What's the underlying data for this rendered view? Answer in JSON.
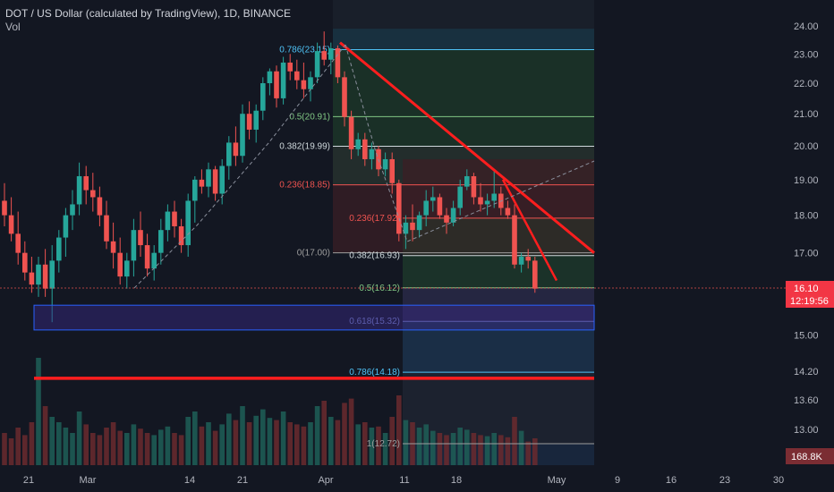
{
  "header": {
    "title": "DOT / US Dollar (calculated by TradingView), 1D, BINANCE",
    "volume_label": "Vol"
  },
  "colors": {
    "background": "#131722",
    "up": "#26a69a",
    "down": "#ef5350",
    "trendline": "#ff1e1e",
    "zone_fill": "#3a2a8a",
    "zone_border": "#2962ff"
  },
  "chart_data": {
    "type": "candlestick",
    "title": "DOT / US Dollar (calculated by TradingView), 1D, BINANCE",
    "y_axis": {
      "ticks": [
        "24.00",
        "23.00",
        "22.00",
        "21.00",
        "20.00",
        "19.00",
        "18.00",
        "17.00",
        "15.00",
        "14.20",
        "13.60",
        "13.00"
      ],
      "tick_values": [
        24,
        23,
        22,
        21,
        20,
        19,
        18,
        17,
        15,
        14.2,
        13.6,
        13
      ],
      "scale": "log"
    },
    "x_axis": {
      "ticks": [
        "21",
        "Mar",
        "14",
        "21",
        "Apr",
        "11",
        "18",
        "May",
        "9",
        "16",
        "23",
        "30"
      ]
    },
    "price_tag": {
      "price": "16.10",
      "countdown": "12:19:56"
    },
    "volume_tag": "168.8K",
    "candles": [
      [
        18.4,
        18.9,
        17.7,
        18.0
      ],
      [
        18.0,
        18.5,
        17.3,
        17.5
      ],
      [
        17.5,
        18.1,
        16.7,
        17.0
      ],
      [
        17.0,
        17.3,
        16.3,
        16.5
      ],
      [
        16.5,
        16.9,
        16.0,
        16.2
      ],
      [
        16.2,
        16.9,
        15.9,
        16.7
      ],
      [
        16.7,
        17.1,
        15.9,
        16.1
      ],
      [
        16.1,
        17.2,
        15.3,
        16.8
      ],
      [
        16.8,
        17.6,
        16.5,
        17.4
      ],
      [
        17.4,
        18.2,
        16.9,
        18.0
      ],
      [
        18.0,
        18.7,
        17.6,
        18.3
      ],
      [
        18.3,
        19.5,
        18.0,
        19.1
      ],
      [
        19.1,
        19.4,
        18.3,
        18.7
      ],
      [
        18.7,
        19.2,
        18.1,
        18.5
      ],
      [
        18.5,
        18.8,
        17.7,
        18.0
      ],
      [
        18.0,
        18.4,
        17.1,
        17.3
      ],
      [
        17.3,
        17.8,
        16.6,
        17.0
      ],
      [
        17.0,
        17.4,
        16.2,
        16.4
      ],
      [
        16.4,
        17.0,
        16.1,
        16.8
      ],
      [
        16.8,
        17.9,
        16.4,
        17.6
      ],
      [
        17.6,
        18.1,
        16.9,
        17.2
      ],
      [
        17.2,
        17.5,
        16.4,
        16.6
      ],
      [
        16.6,
        17.2,
        16.3,
        17.0
      ],
      [
        17.0,
        17.9,
        16.7,
        17.6
      ],
      [
        17.6,
        18.3,
        17.3,
        18.1
      ],
      [
        18.1,
        18.4,
        17.4,
        17.7
      ],
      [
        17.7,
        17.9,
        17.0,
        17.2
      ],
      [
        17.2,
        18.6,
        16.9,
        18.4
      ],
      [
        18.4,
        19.1,
        17.8,
        19.0
      ],
      [
        19.0,
        19.3,
        18.6,
        18.8
      ],
      [
        18.8,
        19.5,
        18.5,
        19.3
      ],
      [
        19.3,
        19.4,
        18.4,
        18.6
      ],
      [
        18.6,
        19.6,
        18.3,
        19.4
      ],
      [
        19.4,
        20.3,
        19.0,
        20.1
      ],
      [
        20.1,
        20.6,
        19.4,
        19.7
      ],
      [
        19.7,
        21.3,
        19.5,
        21.0
      ],
      [
        21.0,
        21.4,
        20.2,
        20.5
      ],
      [
        20.5,
        21.3,
        20.1,
        21.1
      ],
      [
        21.1,
        22.2,
        20.8,
        22.0
      ],
      [
        22.0,
        22.5,
        21.6,
        22.4
      ],
      [
        22.4,
        22.6,
        21.2,
        21.5
      ],
      [
        21.5,
        22.9,
        21.3,
        22.7
      ],
      [
        22.7,
        23.0,
        22.1,
        22.4
      ],
      [
        22.4,
        22.8,
        21.8,
        22.1
      ],
      [
        22.1,
        22.7,
        21.5,
        21.8
      ],
      [
        21.8,
        22.4,
        21.4,
        22.2
      ],
      [
        22.2,
        23.4,
        22.0,
        23.1
      ],
      [
        23.1,
        23.8,
        22.6,
        22.8
      ],
      [
        22.8,
        23.4,
        22.3,
        23.2
      ],
      [
        23.2,
        23.3,
        22.0,
        22.2
      ],
      [
        22.2,
        22.4,
        20.6,
        20.9
      ],
      [
        20.9,
        21.1,
        19.6,
        19.9
      ],
      [
        19.9,
        20.4,
        19.7,
        20.2
      ],
      [
        20.2,
        20.4,
        19.4,
        19.6
      ],
      [
        19.6,
        20.1,
        19.3,
        19.9
      ],
      [
        19.9,
        20.0,
        19.1,
        19.3
      ],
      [
        19.3,
        19.8,
        19.1,
        19.6
      ],
      [
        19.6,
        19.8,
        18.6,
        18.9
      ],
      [
        18.9,
        19.0,
        17.3,
        17.5
      ],
      [
        17.5,
        18.0,
        17.1,
        17.8
      ],
      [
        17.8,
        18.3,
        17.3,
        17.6
      ],
      [
        17.6,
        18.1,
        17.4,
        18.0
      ],
      [
        18.0,
        18.7,
        17.7,
        18.4
      ],
      [
        18.4,
        18.8,
        18.1,
        18.5
      ],
      [
        18.5,
        18.6,
        17.9,
        18.0
      ],
      [
        18.0,
        18.2,
        17.5,
        17.8
      ],
      [
        17.8,
        18.4,
        17.7,
        18.2
      ],
      [
        18.2,
        19.0,
        18.0,
        18.8
      ],
      [
        18.8,
        19.3,
        18.7,
        19.1
      ],
      [
        19.1,
        19.2,
        18.3,
        18.5
      ],
      [
        18.5,
        18.9,
        18.1,
        18.3
      ],
      [
        18.3,
        18.6,
        18.0,
        18.4
      ],
      [
        18.4,
        19.3,
        18.2,
        18.6
      ],
      [
        18.6,
        18.8,
        18.0,
        18.2
      ],
      [
        18.2,
        18.4,
        17.9,
        18.0
      ],
      [
        18.0,
        18.3,
        16.6,
        16.7
      ],
      [
        16.7,
        17.0,
        16.5,
        16.9
      ],
      [
        16.9,
        17.1,
        16.6,
        16.8
      ],
      [
        16.8,
        16.9,
        16.0,
        16.1
      ]
    ],
    "volumes": [
      0.3,
      0.25,
      0.35,
      0.28,
      0.4,
      1.0,
      0.55,
      0.45,
      0.4,
      0.35,
      0.3,
      0.5,
      0.38,
      0.3,
      0.28,
      0.35,
      0.4,
      0.32,
      0.3,
      0.38,
      0.34,
      0.3,
      0.28,
      0.33,
      0.36,
      0.3,
      0.28,
      0.45,
      0.5,
      0.36,
      0.4,
      0.32,
      0.38,
      0.48,
      0.42,
      0.55,
      0.4,
      0.46,
      0.52,
      0.44,
      0.42,
      0.5,
      0.4,
      0.38,
      0.36,
      0.4,
      0.55,
      0.6,
      0.45,
      0.42,
      0.58,
      0.62,
      0.38,
      0.4,
      0.35,
      0.36,
      0.3,
      0.45,
      0.65,
      0.42,
      0.4,
      0.35,
      0.38,
      0.32,
      0.3,
      0.28,
      0.3,
      0.35,
      0.33,
      0.3,
      0.28,
      0.27,
      0.3,
      0.28,
      0.26,
      0.45,
      0.32,
      0.22,
      0.25
    ],
    "fib_retracement_1": [
      {
        "label": "0.786(23.15)",
        "price": 23.15,
        "color": "#4fc3f7"
      },
      {
        "label": "0.5(20.91)",
        "price": 20.91,
        "color": "#81c784"
      },
      {
        "label": "0.382(19.99)",
        "price": 19.99,
        "color": "#cfd8dc"
      },
      {
        "label": "0.236(18.85)",
        "price": 18.85,
        "color": "#ef5350"
      },
      {
        "label": "0(17.00)",
        "price": 17.0,
        "color": "#9e9e9e"
      }
    ],
    "fib_retracement_2": [
      {
        "label": "0.236(17.92)",
        "price": 17.92,
        "color": "#ef5350"
      },
      {
        "label": "0.382(16.93)",
        "price": 16.93,
        "color": "#cfd8dc"
      },
      {
        "label": "0.5(16.12)",
        "price": 16.12,
        "color": "#81c784"
      },
      {
        "label": "0.618(15.32)",
        "price": 15.32,
        "color": "#7986cb"
      },
      {
        "label": "0.786(14.18)",
        "price": 14.18,
        "color": "#4fc3f7"
      },
      {
        "label": "1(12.72)",
        "price": 12.72,
        "color": "#9e9e9e"
      }
    ],
    "support_zone": {
      "top": 15.7,
      "bottom": 15.12
    },
    "support_line": 14.05,
    "trendline_1": [
      [
        23.4,
        17.0
      ]
    ],
    "trendline_2": [
      [
        19.0,
        16.3
      ]
    ]
  }
}
